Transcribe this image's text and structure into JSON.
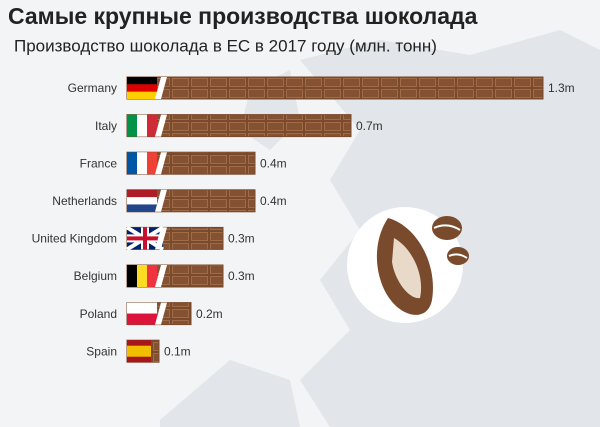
{
  "chart_data": {
    "type": "bar",
    "orientation": "horizontal",
    "title": "Самые крупные производства шоколада",
    "subtitle": "Производство шоколада в ЕС в 2017 году (млн. тонн)",
    "categories": [
      "Germany",
      "Italy",
      "France",
      "Netherlands",
      "United Kingdom",
      "Belgium",
      "Poland",
      "Spain"
    ],
    "values": [
      1.3,
      0.7,
      0.4,
      0.4,
      0.3,
      0.3,
      0.2,
      0.1
    ],
    "value_labels": [
      "1.3m",
      "0.7m",
      "0.4m",
      "0.4m",
      "0.3m",
      "0.3m",
      "0.2m",
      "0.1m"
    ],
    "color": "#7a4a2c"
  }
}
